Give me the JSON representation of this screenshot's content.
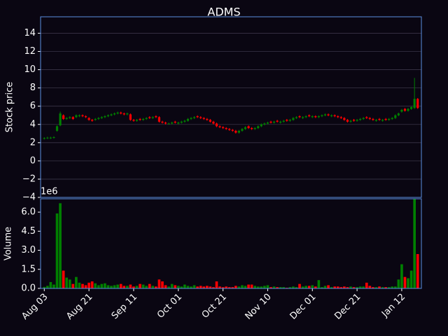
{
  "chart_data": {
    "type": "candlestick",
    "title": "ADMS",
    "ylabel": "Stock price",
    "volume_label": "Volume",
    "volume_offset": "1e6",
    "up_color": "#008000",
    "down_color": "#ff0000",
    "edge_color": "#5b8ee0",
    "grid": true,
    "ylim": [
      -4,
      15.8
    ],
    "yticks": [
      {
        "value": -4,
        "label": "−4"
      },
      {
        "value": -2,
        "label": "−2"
      },
      0,
      2,
      4,
      6,
      8,
      10,
      12,
      14
    ],
    "volume_ylim": [
      0,
      7.05
    ],
    "volume_yticks": [
      {
        "value": 0,
        "label": "0.0"
      },
      {
        "value": 1.5,
        "label": "1.5"
      },
      {
        "value": 3,
        "label": "3.0"
      },
      {
        "value": 4.5,
        "label": "4.5"
      },
      {
        "value": 6,
        "label": "6.0"
      }
    ],
    "categories": [
      "Aug 03",
      null,
      null,
      null,
      null,
      null,
      null,
      null,
      null,
      null,
      null,
      null,
      null,
      null,
      "Aug 21",
      null,
      null,
      null,
      null,
      null,
      null,
      null,
      null,
      null,
      null,
      null,
      null,
      null,
      "Sep 11",
      null,
      null,
      null,
      null,
      null,
      null,
      null,
      null,
      null,
      null,
      null,
      null,
      null,
      "Oct 01",
      null,
      null,
      null,
      null,
      null,
      null,
      null,
      null,
      null,
      null,
      null,
      null,
      null,
      "Oct 21",
      null,
      null,
      null,
      null,
      null,
      null,
      null,
      null,
      null,
      null,
      null,
      null,
      null,
      "Nov 10",
      null,
      null,
      null,
      null,
      null,
      null,
      null,
      null,
      null,
      null,
      null,
      null,
      null,
      "Dec 01",
      null,
      null,
      null,
      null,
      null,
      null,
      null,
      null,
      null,
      null,
      null,
      null,
      null,
      "Dec 21",
      null,
      null,
      null,
      null,
      null,
      null,
      null,
      null,
      null,
      null,
      null,
      null,
      null,
      "Jan 12",
      null,
      null,
      null,
      null,
      null
    ],
    "open": [
      2.45,
      2.5,
      2.5,
      2.55,
      3.3,
      3.9,
      5.0,
      4.6,
      4.7,
      4.8,
      4.8,
      4.9,
      5.0,
      4.9,
      4.7,
      4.5,
      4.5,
      4.6,
      4.7,
      4.8,
      4.9,
      5.0,
      5.1,
      5.2,
      5.3,
      5.2,
      5.1,
      5.1,
      4.5,
      4.4,
      4.6,
      4.5,
      4.6,
      4.8,
      4.7,
      4.9,
      4.8,
      4.3,
      4.2,
      4.1,
      4.1,
      4.3,
      4.1,
      4.2,
      4.3,
      4.4,
      4.6,
      4.7,
      4.9,
      4.8,
      4.7,
      4.6,
      4.5,
      4.3,
      4.1,
      3.8,
      3.7,
      3.6,
      3.5,
      3.4,
      3.3,
      3.1,
      3.3,
      3.5,
      3.8,
      3.6,
      3.5,
      3.6,
      3.8,
      4.0,
      4.1,
      4.3,
      4.2,
      4.4,
      4.2,
      4.3,
      4.5,
      4.4,
      4.5,
      4.7,
      4.9,
      4.7,
      4.8,
      5.0,
      4.8,
      4.9,
      4.8,
      4.9,
      5.0,
      5.1,
      4.9,
      5.0,
      4.9,
      4.8,
      4.7,
      4.5,
      4.3,
      4.5,
      4.4,
      4.5,
      4.6,
      4.8,
      4.7,
      4.6,
      4.4,
      4.6,
      4.4,
      4.6,
      4.5,
      4.6,
      4.7,
      5.0,
      5.4,
      5.7,
      5.5,
      5.7,
      5.8,
      6.8
    ],
    "high": [
      2.6,
      2.65,
      2.65,
      2.7,
      3.9,
      5.4,
      5.1,
      4.8,
      4.9,
      4.9,
      5.1,
      5.1,
      5.1,
      5.0,
      4.8,
      4.6,
      4.7,
      4.8,
      4.9,
      5.0,
      5.1,
      5.2,
      5.3,
      5.4,
      5.4,
      5.3,
      5.3,
      5.2,
      4.6,
      4.6,
      4.7,
      4.7,
      4.8,
      4.9,
      4.9,
      5.0,
      4.9,
      4.4,
      4.3,
      4.2,
      4.3,
      4.4,
      4.3,
      4.4,
      4.5,
      4.7,
      4.8,
      4.9,
      5.0,
      4.9,
      4.8,
      4.7,
      4.6,
      4.4,
      4.2,
      3.9,
      3.8,
      3.7,
      3.6,
      3.5,
      3.4,
      3.4,
      3.6,
      3.8,
      3.9,
      3.7,
      3.7,
      3.9,
      4.1,
      4.2,
      4.3,
      4.4,
      4.4,
      4.5,
      4.4,
      4.5,
      4.6,
      4.6,
      4.8,
      4.9,
      5.0,
      4.9,
      5.0,
      5.1,
      5.0,
      5.0,
      5.0,
      5.1,
      5.2,
      5.2,
      5.1,
      5.1,
      5.0,
      4.9,
      4.8,
      4.6,
      4.5,
      4.6,
      4.6,
      4.7,
      4.8,
      4.9,
      4.8,
      4.7,
      4.6,
      4.7,
      4.6,
      4.7,
      4.7,
      4.8,
      5.1,
      5.3,
      5.7,
      5.8,
      5.8,
      6.0,
      9.1,
      6.9
    ],
    "low": [
      2.35,
      2.4,
      2.4,
      2.45,
      3.2,
      3.8,
      4.5,
      4.5,
      4.6,
      4.5,
      4.7,
      4.8,
      4.8,
      4.7,
      4.4,
      4.3,
      4.4,
      4.5,
      4.6,
      4.7,
      4.8,
      4.9,
      5.0,
      5.1,
      5.1,
      5.0,
      5.0,
      4.4,
      4.3,
      4.3,
      4.4,
      4.4,
      4.5,
      4.6,
      4.6,
      4.7,
      4.2,
      4.1,
      4.0,
      4.0,
      4.0,
      4.1,
      4.0,
      4.1,
      4.2,
      4.3,
      4.5,
      4.6,
      4.7,
      4.6,
      4.5,
      4.4,
      4.2,
      4.0,
      3.7,
      3.6,
      3.5,
      3.4,
      3.3,
      3.2,
      3.0,
      3.0,
      3.2,
      3.4,
      3.5,
      3.4,
      3.4,
      3.5,
      3.7,
      3.9,
      4.0,
      4.1,
      4.1,
      4.2,
      4.1,
      4.2,
      4.3,
      4.3,
      4.4,
      4.6,
      4.7,
      4.6,
      4.7,
      4.8,
      4.7,
      4.7,
      4.7,
      4.8,
      4.9,
      4.9,
      4.8,
      4.8,
      4.7,
      4.6,
      4.4,
      4.2,
      4.2,
      4.3,
      4.3,
      4.4,
      4.5,
      4.6,
      4.5,
      4.4,
      4.3,
      4.4,
      4.3,
      4.4,
      4.4,
      4.5,
      4.6,
      4.9,
      5.3,
      5.4,
      5.4,
      5.6,
      5.7,
      5.7
    ],
    "close": [
      2.5,
      2.55,
      2.55,
      2.6,
      3.8,
      5.2,
      4.6,
      4.7,
      4.8,
      4.6,
      5.0,
      5.0,
      4.9,
      4.8,
      4.5,
      4.4,
      4.6,
      4.7,
      4.8,
      4.9,
      5.0,
      5.1,
      5.2,
      5.3,
      5.2,
      5.1,
      5.2,
      4.5,
      4.4,
      4.5,
      4.5,
      4.6,
      4.7,
      4.7,
      4.8,
      4.8,
      4.3,
      4.2,
      4.1,
      4.1,
      4.2,
      4.2,
      4.2,
      4.3,
      4.4,
      4.6,
      4.7,
      4.8,
      4.8,
      4.7,
      4.6,
      4.5,
      4.3,
      4.1,
      3.8,
      3.7,
      3.6,
      3.5,
      3.4,
      3.3,
      3.1,
      3.3,
      3.5,
      3.7,
      3.6,
      3.5,
      3.6,
      3.8,
      4.0,
      4.1,
      4.2,
      4.2,
      4.3,
      4.3,
      4.3,
      4.4,
      4.4,
      4.5,
      4.7,
      4.8,
      4.8,
      4.8,
      4.9,
      4.9,
      4.9,
      4.8,
      4.9,
      5.0,
      5.1,
      5.0,
      5.0,
      4.9,
      4.8,
      4.7,
      4.5,
      4.3,
      4.4,
      4.4,
      4.5,
      4.6,
      4.7,
      4.7,
      4.6,
      4.5,
      4.5,
      4.5,
      4.5,
      4.5,
      4.6,
      4.7,
      5.0,
      5.2,
      5.6,
      5.5,
      5.7,
      5.9,
      6.8,
      5.8
    ],
    "volume": [
      0.12,
      0.2,
      0.5,
      0.3,
      5.9,
      6.7,
      1.4,
      0.85,
      0.7,
      0.35,
      0.9,
      0.45,
      0.35,
      0.25,
      0.45,
      0.55,
      0.4,
      0.25,
      0.35,
      0.4,
      0.25,
      0.2,
      0.25,
      0.3,
      0.35,
      0.2,
      0.2,
      0.3,
      0.15,
      0.2,
      0.35,
      0.3,
      0.2,
      0.35,
      0.2,
      0.15,
      0.7,
      0.55,
      0.25,
      0.15,
      0.35,
      0.25,
      0.2,
      0.15,
      0.3,
      0.2,
      0.15,
      0.25,
      0.15,
      0.2,
      0.15,
      0.2,
      0.15,
      0.1,
      0.55,
      0.15,
      0.1,
      0.15,
      0.1,
      0.1,
      0.2,
      0.15,
      0.25,
      0.2,
      0.3,
      0.3,
      0.2,
      0.15,
      0.15,
      0.2,
      0.25,
      0.1,
      0.15,
      0.1,
      0.1,
      0.1,
      0.05,
      0.1,
      0.15,
      0.1,
      0.35,
      0.15,
      0.2,
      0.2,
      0.25,
      0.15,
      0.65,
      0.1,
      0.2,
      0.25,
      0.1,
      0.15,
      0.15,
      0.1,
      0.15,
      0.1,
      0.15,
      0.1,
      0.1,
      0.15,
      0.15,
      0.45,
      0.2,
      0.1,
      0.1,
      0.15,
      0.1,
      0.1,
      0.1,
      0.15,
      0.15,
      0.7,
      1.9,
      0.9,
      0.8,
      1.4,
      7.05,
      2.7
    ]
  }
}
